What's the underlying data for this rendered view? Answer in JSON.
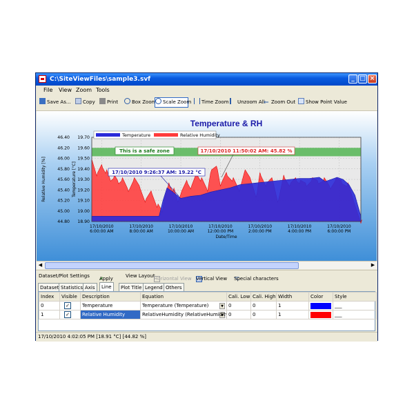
{
  "window": {
    "title": "C:\\SiteViewFiles\\sample3.svf"
  },
  "menu": [
    "File",
    "View",
    "Zoom",
    "Tools"
  ],
  "toolbar": {
    "save": "Save As...",
    "copy": "Copy",
    "print": "Print",
    "box_zoom": "Box Zoom",
    "scale_zoom": "Scale Zoom",
    "time_zoom": "Time Zoom",
    "unzoom_all": "Unzoom All",
    "zoom_out": "Zoom Out",
    "show_point": "Show Point Value"
  },
  "chart_data": {
    "type": "area",
    "title": "Temperature & RH",
    "xlabel": "Date/Time",
    "ylabel_left": "Temperature [°C]",
    "ylabel_right": "Relative Humidity [%]",
    "legend": [
      "Temperature",
      "Relative Humidity"
    ],
    "legend_placement": "top-left",
    "temp_ylim": [
      18.9,
      19.7
    ],
    "temp_ticks": [
      "19.70",
      "19.60",
      "19.50",
      "19.40",
      "19.30",
      "19.20",
      "19.10",
      "19.00",
      "18.90"
    ],
    "rh_ylim": [
      44.8,
      46.4
    ],
    "rh_ticks": [
      "46.40",
      "46.20",
      "46.00",
      "45.80",
      "45.60",
      "45.40",
      "45.20",
      "45.00",
      "44.80"
    ],
    "x_ticks": [
      {
        "date": "17/10/2010",
        "time": "6:00:00 AM"
      },
      {
        "date": "17/10/2010",
        "time": "8:00:00 AM"
      },
      {
        "date": "17/10/2010",
        "time": "10:00:00 AM"
      },
      {
        "date": "17/10/2010",
        "time": "12:00:00 PM"
      },
      {
        "date": "17/10/2010",
        "time": "2:00:00 PM"
      },
      {
        "date": "17/10/2010",
        "time": "4:00:00 PM"
      },
      {
        "date": "17/10/2010",
        "time": "6:00:00 PM"
      }
    ],
    "x_hours": [
      5.5,
      19.1
    ],
    "zone": {
      "label": "This is a safe zone",
      "temp_range": [
        19.52,
        19.6
      ]
    },
    "annotations": [
      {
        "text": "17/10/2010 11:50:02 AM: 45.82 %",
        "series": "Relative Humidity"
      },
      {
        "text": "17/10/2010 9:26:37 AM: 19.22 °C",
        "series": "Temperature"
      }
    ],
    "series": [
      {
        "name": "Relative Humidity",
        "color": "#ff3b3b",
        "hours": [
          5.5,
          5.75,
          6.0,
          6.2,
          6.4,
          6.6,
          6.8,
          7.0,
          7.3,
          7.6,
          7.9,
          8.2,
          8.5,
          8.8,
          9.0,
          9.2,
          9.4,
          9.6,
          9.8,
          10.0,
          10.3,
          10.5,
          10.8,
          11.0,
          11.3,
          11.5,
          11.8,
          12.0,
          12.3,
          12.6,
          12.9,
          13.2,
          13.5,
          13.8,
          14.0,
          14.3,
          14.6,
          14.9,
          15.2,
          15.5,
          15.8,
          16.0,
          16.3,
          16.6,
          16.9,
          17.2,
          17.5,
          17.8,
          18.1,
          18.4,
          18.7,
          19.1
        ],
        "values": [
          45.95,
          45.7,
          45.85,
          45.75,
          45.6,
          45.65,
          45.55,
          45.6,
          45.4,
          45.6,
          45.45,
          45.2,
          45.35,
          45.1,
          45.0,
          45.3,
          45.5,
          45.4,
          45.2,
          45.35,
          45.55,
          45.45,
          45.7,
          45.6,
          45.4,
          45.75,
          45.82,
          45.5,
          45.7,
          45.6,
          45.4,
          45.75,
          45.6,
          45.3,
          45.7,
          45.5,
          45.6,
          45.2,
          45.65,
          45.5,
          45.6,
          45.55,
          45.5,
          45.6,
          45.55,
          45.6,
          45.45,
          45.6,
          45.55,
          45.5,
          45.2,
          44.8
        ]
      },
      {
        "name": "Temperature",
        "color": "#2a2ad9",
        "hours": [
          5.5,
          6.0,
          6.5,
          7.0,
          7.5,
          8.0,
          8.5,
          8.9,
          9.1,
          9.3,
          9.6,
          10.0,
          10.5,
          11.0,
          11.5,
          12.0,
          12.5,
          13.0,
          13.5,
          14.0,
          14.5,
          15.0,
          15.5,
          16.0,
          16.5,
          17.0,
          17.3,
          17.6,
          17.9,
          18.2,
          18.5,
          18.8,
          19.1
        ],
        "values": [
          18.95,
          18.95,
          18.95,
          18.95,
          18.95,
          18.95,
          18.95,
          18.95,
          19.1,
          19.22,
          19.18,
          19.12,
          19.14,
          19.15,
          19.18,
          19.2,
          19.22,
          19.25,
          19.26,
          19.27,
          19.28,
          19.29,
          19.3,
          19.31,
          19.31,
          19.32,
          19.28,
          19.3,
          19.32,
          19.3,
          19.25,
          19.15,
          18.95
        ]
      }
    ]
  },
  "datasetbar": {
    "settings": "Dataset/Plot Settings",
    "apply": "Apply",
    "view_layout": "View Layout",
    "horizontal": "Horizontal View",
    "vertical": "Vertical View",
    "special": "Special characters"
  },
  "tabs": [
    "Dataset",
    "Statistics",
    "Axis",
    "Line",
    "Plot Title",
    "Legend",
    "Others"
  ],
  "table": {
    "headers": [
      "Index",
      "Visible",
      "Description",
      "Equation",
      "Cali. Low",
      "Cali. High",
      "Width",
      "Color",
      "Style"
    ],
    "rows": [
      {
        "index": "0",
        "description": "Temperature",
        "equation": "Temperature (Temperature)",
        "cali_low": "0",
        "cali_high": "0",
        "width": "1",
        "color": "#0000ff",
        "style": "___"
      },
      {
        "index": "1",
        "description": "Relative Humidity",
        "equation": "RelativeHumidity (RelativeHumidity)",
        "cali_low": "0",
        "cali_high": "0",
        "width": "1",
        "color": "#ff0000",
        "style": "___"
      }
    ]
  },
  "status": "17/10/2010 4:02:05 PM [18.91 °C] [44.82 %]"
}
